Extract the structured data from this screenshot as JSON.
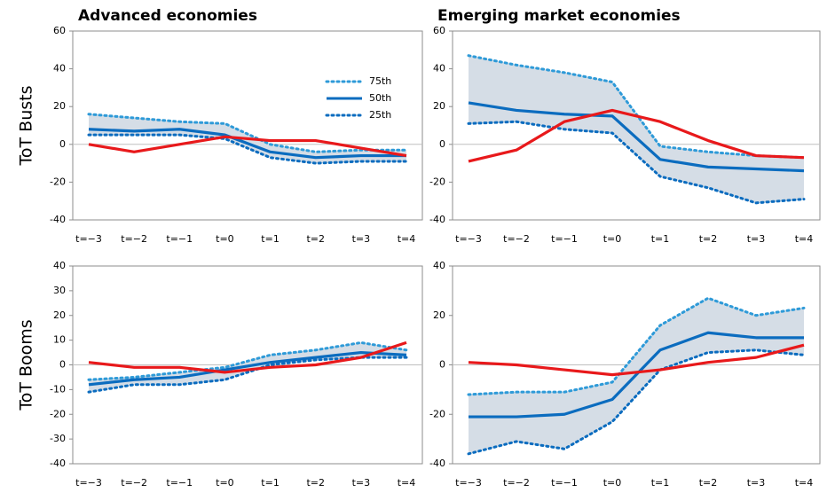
{
  "chart_data": [
    {
      "type": "line",
      "title": "Advanced economies",
      "ylabel": "ToT Busts",
      "categories": [
        "t=−3",
        "t=−2",
        "t=−1",
        "t=0",
        "t=1",
        "t=2",
        "t=3",
        "t=4"
      ],
      "ylim": [
        -40,
        60
      ],
      "yticks": [
        -40,
        -20,
        0,
        20,
        40,
        60
      ],
      "legend": "upper right",
      "band_color": "#d5dde6",
      "series": [
        {
          "name": "75th",
          "color": "#2e9ad8",
          "style": "dotted",
          "values": [
            16,
            14,
            12,
            11,
            0,
            -4,
            -3,
            -3
          ]
        },
        {
          "name": "50th",
          "color": "#0b6cbf",
          "style": "solid",
          "values": [
            8,
            7,
            8,
            5,
            -4,
            -7,
            -6,
            -6
          ]
        },
        {
          "name": "25th",
          "color": "#0b6cbf",
          "style": "dotted",
          "values": [
            5,
            5,
            5,
            3,
            -7,
            -10,
            -9,
            -9
          ]
        },
        {
          "color": "#e8191b",
          "style": "solid",
          "values": [
            0,
            -4,
            0,
            4,
            2,
            2,
            -2,
            -6
          ]
        }
      ]
    },
    {
      "type": "line",
      "title": "Emerging market economies",
      "categories": [
        "t=−3",
        "t=−2",
        "t=−1",
        "t=0",
        "t=1",
        "t=2",
        "t=3",
        "t=4"
      ],
      "ylim": [
        -40,
        60
      ],
      "yticks": [
        -40,
        -20,
        0,
        20,
        40,
        60
      ],
      "band_color": "#d5dde6",
      "series": [
        {
          "name": "75th",
          "color": "#2e9ad8",
          "style": "dotted",
          "values": [
            47,
            42,
            38,
            33,
            -1,
            -4,
            -6,
            -7
          ]
        },
        {
          "name": "50th",
          "color": "#0b6cbf",
          "style": "solid",
          "values": [
            22,
            18,
            16,
            15,
            -8,
            -12,
            -13,
            -14
          ]
        },
        {
          "name": "25th",
          "color": "#0b6cbf",
          "style": "dotted",
          "values": [
            11,
            12,
            8,
            6,
            -17,
            -23,
            -31,
            -29
          ]
        },
        {
          "color": "#e8191b",
          "style": "solid",
          "values": [
            -9,
            -3,
            12,
            18,
            12,
            2,
            -6,
            -7
          ]
        }
      ]
    },
    {
      "type": "line",
      "ylabel": "ToT Booms",
      "categories": [
        "t=−3",
        "t=−2",
        "t=−1",
        "t=0",
        "t=1",
        "t=2",
        "t=3",
        "t=4"
      ],
      "ylim": [
        -40,
        40
      ],
      "yticks": [
        -40,
        -30,
        -20,
        -10,
        0,
        10,
        20,
        30,
        40
      ],
      "band_color": "#d5dde6",
      "series": [
        {
          "name": "75th",
          "color": "#2e9ad8",
          "style": "dotted",
          "values": [
            -6,
            -5,
            -3,
            -1,
            4,
            6,
            9,
            6
          ]
        },
        {
          "name": "50th",
          "color": "#0b6cbf",
          "style": "solid",
          "values": [
            -8,
            -6,
            -5,
            -2,
            1,
            3,
            5,
            4
          ]
        },
        {
          "name": "25th",
          "color": "#0b6cbf",
          "style": "dotted",
          "values": [
            -11,
            -8,
            -8,
            -6,
            0,
            2,
            3,
            3
          ]
        },
        {
          "color": "#e8191b",
          "style": "solid",
          "values": [
            1,
            -1,
            -1,
            -3,
            -1,
            0,
            3,
            9
          ]
        }
      ]
    },
    {
      "type": "line",
      "categories": [
        "t=−3",
        "t=−2",
        "t=−1",
        "t=0",
        "t=1",
        "t=2",
        "t=3",
        "t=4"
      ],
      "ylim": [
        -40,
        40
      ],
      "yticks": [
        -40,
        -20,
        0,
        20,
        40
      ],
      "band_color": "#d5dde6",
      "series": [
        {
          "name": "75th",
          "color": "#2e9ad8",
          "style": "dotted",
          "values": [
            -12,
            -11,
            -11,
            -7,
            16,
            27,
            20,
            23
          ]
        },
        {
          "name": "50th",
          "color": "#0b6cbf",
          "style": "solid",
          "values": [
            -21,
            -21,
            -20,
            -14,
            6,
            13,
            11,
            11
          ]
        },
        {
          "name": "25th",
          "color": "#0b6cbf",
          "style": "dotted",
          "values": [
            -36,
            -31,
            -34,
            -23,
            -2,
            5,
            6,
            4
          ]
        },
        {
          "color": "#e8191b",
          "style": "solid",
          "values": [
            1,
            0,
            -2,
            -4,
            -2,
            1,
            3,
            8
          ]
        }
      ]
    }
  ]
}
